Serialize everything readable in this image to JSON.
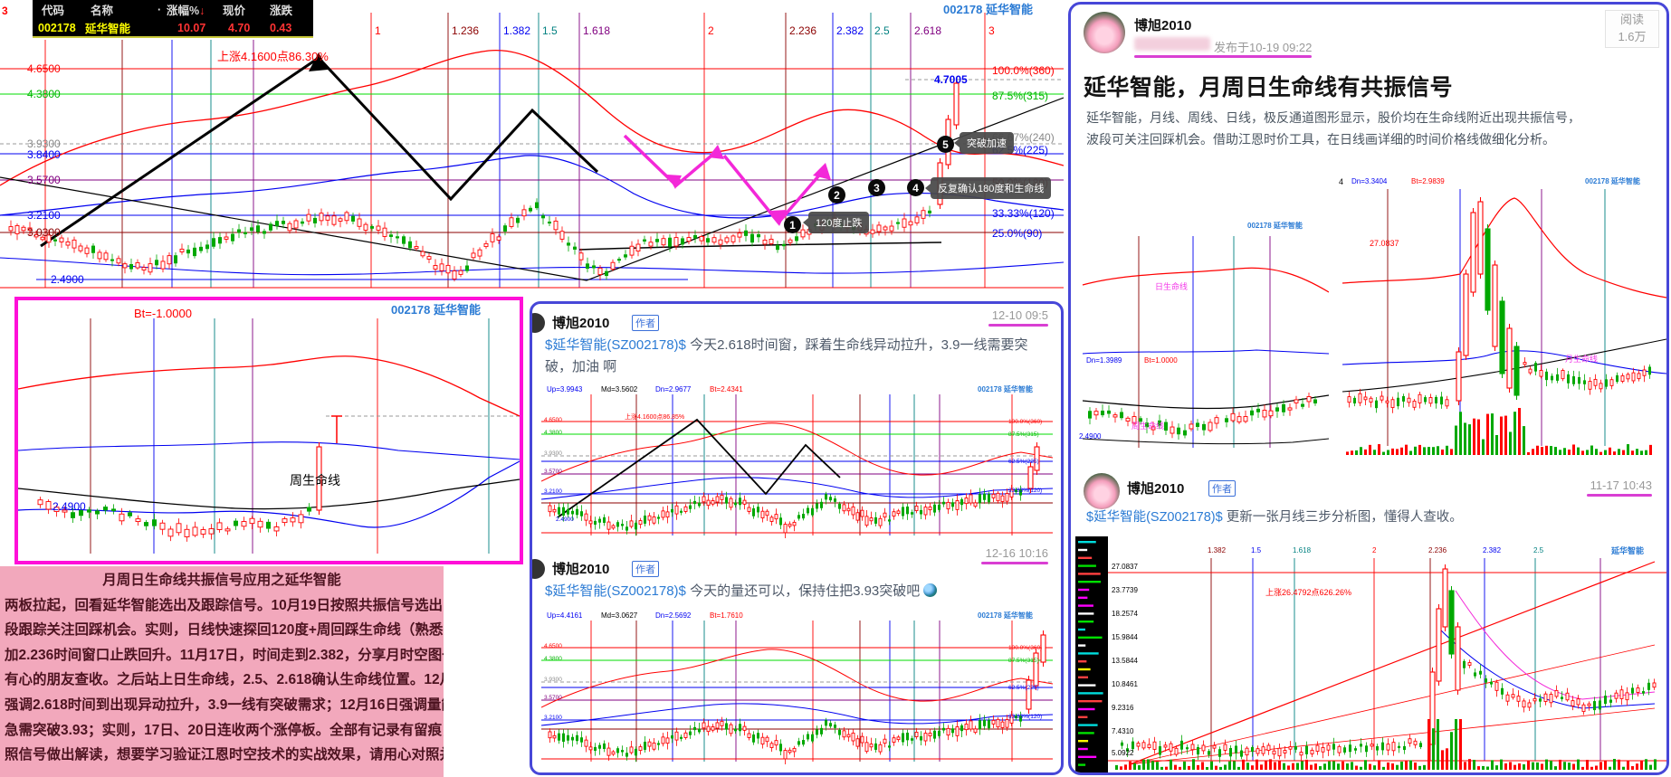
{
  "colors": {
    "magenta_accent": "#d93fd3",
    "panel_border": "#4747d8",
    "pink_bg": "#f2a8bc",
    "quote_yellow": "#ffff00",
    "up_red": "#ff2222",
    "down_green": "#00a800"
  },
  "quote_bar": {
    "index_label": "3",
    "headers": [
      "代码",
      "名称",
      "·",
      "涨幅%",
      "现价",
      "涨跌"
    ],
    "sort_arrow": "↓",
    "row": {
      "code": "002178",
      "name": "延华智能",
      "change_pct": "10.07",
      "price": "4.70",
      "change": "0.43"
    }
  },
  "daily_chart": {
    "symbol": "002178 延华智能",
    "time_labels": [
      "1",
      "1.236",
      "1.382",
      "1.5",
      "1.618",
      "2",
      "2.236",
      "2.382",
      "2.5",
      "2.618",
      "3"
    ],
    "price_labels": [
      "4.6500",
      "4.3800",
      "3.9300",
      "3.8400",
      "3.5700",
      "3.2100",
      "3.0300",
      "2.4900"
    ],
    "pct_labels": [
      "100.0%(360)",
      "87.5%(315)",
      "66.67%(240)",
      "62.5%(225)",
      "50.0%(180)",
      "33.33%(120)",
      "25.0%(90)"
    ],
    "last_price": "4.7005",
    "rise_note": "上涨4.1600点86.30%",
    "markers": [
      "1",
      "2",
      "3",
      "4",
      "5"
    ],
    "callouts": {
      "m1": "120度止跌",
      "m4": "反复确认180度和生命线",
      "m5": "突破加速"
    }
  },
  "weekly_chart": {
    "bt_label": "Bt=-1.0000",
    "symbol": "002178 延华智能",
    "lifeline_label": "周生命线",
    "low_price": "2.4900"
  },
  "pink_note": {
    "title": "月周日生命线共振信号应用之延华智能",
    "lines": [
      "两板拉起，回看延华智能选出及跟踪信号。10月19日按照共振信号选出，强调波",
      "段跟踪关注回踩机会。实则，日线快速探回120度+周回踩生命线（熟悉吗？）叠",
      "加2.236时间窗口止跌回升。11月17日，时间走到2.382，分享月时空图一张供",
      "有心的朋友查收。之后站上日生命线，2.5、2.618确认生命线位置。12月10日",
      "强调2.618时间到出现异动拉升，3.9一线有突破需求；12月16日强调量能保持",
      "急需突破3.93；实则，17日、20日连收两个涨停板。全部有记录有留痕，完全按",
      "照信号做出解读，想要学习验证江恩时空技术的实战效果，请用心对照并思考。"
    ]
  },
  "feed": {
    "posts": [
      {
        "author": "博旭2010",
        "badge": "作者",
        "time": "12-10 09:5",
        "link": "$延华智能(SZ002178)$",
        "text": "今天2.618时间窗，踩着生命线异动拉升，3.9一线需要突破，加油 啊"
      },
      {
        "author": "博旭2010",
        "badge": "作者",
        "time": "12-16 10:16",
        "link": "$延华智能(SZ002178)$",
        "text": "今天的量还可以，保持住把3.93突破吧",
        "emoji": "globe"
      }
    ],
    "chart1": {
      "params": [
        "Up=3.9943",
        "Md=3.5602",
        "Dn=2.9677",
        "Bt=2.4341"
      ],
      "symbol": "002178 延华智能",
      "rise_note": "上涨4.1600点86.85%"
    },
    "chart2": {
      "params": [
        "Up=4.4161",
        "Md=3.0627",
        "Dn=2.5692",
        "Bt=1.7610"
      ],
      "symbol": "002178 延华智能"
    }
  },
  "article": {
    "author": "博旭2010",
    "published": "发布于10-19 09:22",
    "read_label": "阅读",
    "read_count": "1.6万",
    "title": "延华智能，月周日生命线有共振信号",
    "body_line1": "延华智能，月线、周线、日线，极反通道图形显示，股价均在生命线附近出现共振信号，",
    "body_line2": "波段可关注回踩机会。借助江恩时价工具，在日线画详细的时间价格线做细化分析。",
    "chart_left": {
      "symbol": "002178 延华智能",
      "daily_life": "日生命线",
      "weekly_life": "周生命线",
      "dn": "Dn=1.3989",
      "bt": "Bt=1.0000",
      "low": "2.4900"
    },
    "chart_right": {
      "num": "4",
      "dn": "Dn=3.3404",
      "bt": "Bt=2.9839",
      "high": "27.0837",
      "symbol": "002178 延华智能",
      "monthly_life": "月生命线"
    },
    "post": {
      "author": "博旭2010",
      "badge": "作者",
      "time": "11-17 10:43",
      "link": "$延华智能(SZ002178)$",
      "text": "更新一张月线三步分析图，懂得人查收。"
    },
    "chart_bottom": {
      "symbol": "延华智能",
      "rise_note": "上涨26.4792点626.26%",
      "time_labels": [
        "1.382",
        "1.5",
        "1.618",
        "2",
        "2.236",
        "2.382",
        "2.5"
      ],
      "price_labels": [
        "27.0837",
        "23.7739",
        "18.2574",
        "15.9844",
        "13.5844",
        "10.8461",
        "9.2316",
        "7.4310",
        "5.0922"
      ]
    }
  }
}
